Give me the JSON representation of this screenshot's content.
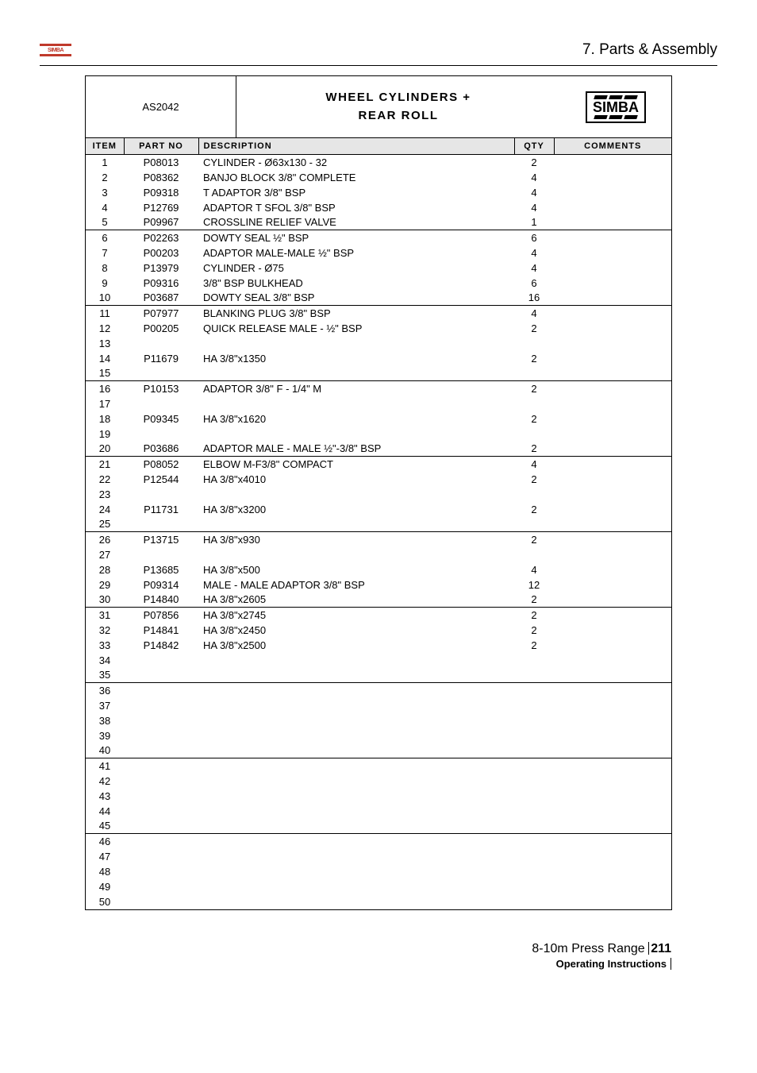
{
  "header": {
    "sectionTitle": "7. Parts & Assembly"
  },
  "tableHeader": {
    "code": "AS2042",
    "titleLine1": "WHEEL CYLINDERS +",
    "titleLine2": "REAR ROLL",
    "brand": "SIMBA"
  },
  "columns": {
    "item": "ITEM",
    "partNo": "PART NO",
    "description": "DESCRIPTION",
    "qty": "QTY",
    "comments": "COMMENTS"
  },
  "rows": [
    {
      "item": "1",
      "part": "P08013",
      "desc": "CYLINDER - Ø63x130 - 32",
      "qty": "2",
      "sep": false
    },
    {
      "item": "2",
      "part": "P08362",
      "desc": "BANJO BLOCK 3/8\" COMPLETE",
      "qty": "4",
      "sep": false
    },
    {
      "item": "3",
      "part": "P09318",
      "desc": "T ADAPTOR 3/8\" BSP",
      "qty": "4",
      "sep": false
    },
    {
      "item": "4",
      "part": "P12769",
      "desc": "ADAPTOR T SFOL 3/8\" BSP",
      "qty": "4",
      "sep": false
    },
    {
      "item": "5",
      "part": "P09967",
      "desc": "CROSSLINE RELIEF VALVE",
      "qty": "1",
      "sep": false
    },
    {
      "item": "6",
      "part": "P02263",
      "desc": "DOWTY SEAL ½\" BSP",
      "qty": "6",
      "sep": true
    },
    {
      "item": "7",
      "part": "P00203",
      "desc": "ADAPTOR MALE-MALE ½\" BSP",
      "qty": "4",
      "sep": false
    },
    {
      "item": "8",
      "part": "P13979",
      "desc": "CYLINDER - Ø75",
      "qty": "4",
      "sep": false
    },
    {
      "item": "9",
      "part": "P09316",
      "desc": "3/8\" BSP BULKHEAD",
      "qty": "6",
      "sep": false
    },
    {
      "item": "10",
      "part": "P03687",
      "desc": "DOWTY SEAL 3/8\" BSP",
      "qty": "16",
      "sep": false
    },
    {
      "item": "11",
      "part": "P07977",
      "desc": "BLANKING PLUG 3/8\" BSP",
      "qty": "4",
      "sep": true
    },
    {
      "item": "12",
      "part": "P00205",
      "desc": "QUICK RELEASE MALE - ½\" BSP",
      "qty": "2",
      "sep": false
    },
    {
      "item": "13",
      "part": "",
      "desc": "",
      "qty": "",
      "sep": false
    },
    {
      "item": "14",
      "part": "P11679",
      "desc": "HA 3/8\"x1350",
      "qty": "2",
      "sep": false
    },
    {
      "item": "15",
      "part": "",
      "desc": "",
      "qty": "",
      "sep": false
    },
    {
      "item": "16",
      "part": "P10153",
      "desc": "ADAPTOR 3/8\" F - 1/4\" M",
      "qty": "2",
      "sep": true
    },
    {
      "item": "17",
      "part": "",
      "desc": "",
      "qty": "",
      "sep": false
    },
    {
      "item": "18",
      "part": "P09345",
      "desc": "HA 3/8\"x1620",
      "qty": "2",
      "sep": false
    },
    {
      "item": "19",
      "part": "",
      "desc": "",
      "qty": "",
      "sep": false
    },
    {
      "item": "20",
      "part": "P03686",
      "desc": "ADAPTOR MALE - MALE ½\"-3/8\" BSP",
      "qty": "2",
      "sep": false
    },
    {
      "item": "21",
      "part": "P08052",
      "desc": "ELBOW M-F3/8\" COMPACT",
      "qty": "4",
      "sep": true
    },
    {
      "item": "22",
      "part": "P12544",
      "desc": "HA 3/8\"x4010",
      "qty": "2",
      "sep": false
    },
    {
      "item": "23",
      "part": "",
      "desc": "",
      "qty": "",
      "sep": false
    },
    {
      "item": "24",
      "part": "P11731",
      "desc": "HA 3/8\"x3200",
      "qty": "2",
      "sep": false
    },
    {
      "item": "25",
      "part": "",
      "desc": "",
      "qty": "",
      "sep": false
    },
    {
      "item": "26",
      "part": "P13715",
      "desc": "HA 3/8\"x930",
      "qty": "2",
      "sep": true
    },
    {
      "item": "27",
      "part": "",
      "desc": "",
      "qty": "",
      "sep": false
    },
    {
      "item": "28",
      "part": "P13685",
      "desc": "HA 3/8\"x500",
      "qty": "4",
      "sep": false
    },
    {
      "item": "29",
      "part": "P09314",
      "desc": "MALE - MALE ADAPTOR 3/8\" BSP",
      "qty": "12",
      "sep": false
    },
    {
      "item": "30",
      "part": "P14840",
      "desc": "HA 3/8\"x2605",
      "qty": "2",
      "sep": false
    },
    {
      "item": "31",
      "part": "P07856",
      "desc": "HA 3/8\"x2745",
      "qty": "2",
      "sep": true
    },
    {
      "item": "32",
      "part": "P14841",
      "desc": "HA 3/8\"x2450",
      "qty": "2",
      "sep": false
    },
    {
      "item": "33",
      "part": "P14842",
      "desc": "HA 3/8\"x2500",
      "qty": "2",
      "sep": false
    },
    {
      "item": "34",
      "part": "",
      "desc": "",
      "qty": "",
      "sep": false
    },
    {
      "item": "35",
      "part": "",
      "desc": "",
      "qty": "",
      "sep": false
    },
    {
      "item": "36",
      "part": "",
      "desc": "",
      "qty": "",
      "sep": true
    },
    {
      "item": "37",
      "part": "",
      "desc": "",
      "qty": "",
      "sep": false
    },
    {
      "item": "38",
      "part": "",
      "desc": "",
      "qty": "",
      "sep": false
    },
    {
      "item": "39",
      "part": "",
      "desc": "",
      "qty": "",
      "sep": false
    },
    {
      "item": "40",
      "part": "",
      "desc": "",
      "qty": "",
      "sep": false
    },
    {
      "item": "41",
      "part": "",
      "desc": "",
      "qty": "",
      "sep": true
    },
    {
      "item": "42",
      "part": "",
      "desc": "",
      "qty": "",
      "sep": false
    },
    {
      "item": "43",
      "part": "",
      "desc": "",
      "qty": "",
      "sep": false
    },
    {
      "item": "44",
      "part": "",
      "desc": "",
      "qty": "",
      "sep": false
    },
    {
      "item": "45",
      "part": "",
      "desc": "",
      "qty": "",
      "sep": false
    },
    {
      "item": "46",
      "part": "",
      "desc": "",
      "qty": "",
      "sep": true
    },
    {
      "item": "47",
      "part": "",
      "desc": "",
      "qty": "",
      "sep": false
    },
    {
      "item": "48",
      "part": "",
      "desc": "",
      "qty": "",
      "sep": false
    },
    {
      "item": "49",
      "part": "",
      "desc": "",
      "qty": "",
      "sep": false
    },
    {
      "item": "50",
      "part": "",
      "desc": "",
      "qty": "",
      "sep": false
    }
  ],
  "footer": {
    "product": "8-10m Press Range",
    "page": "211",
    "subtitle": "Operating Instructions"
  }
}
